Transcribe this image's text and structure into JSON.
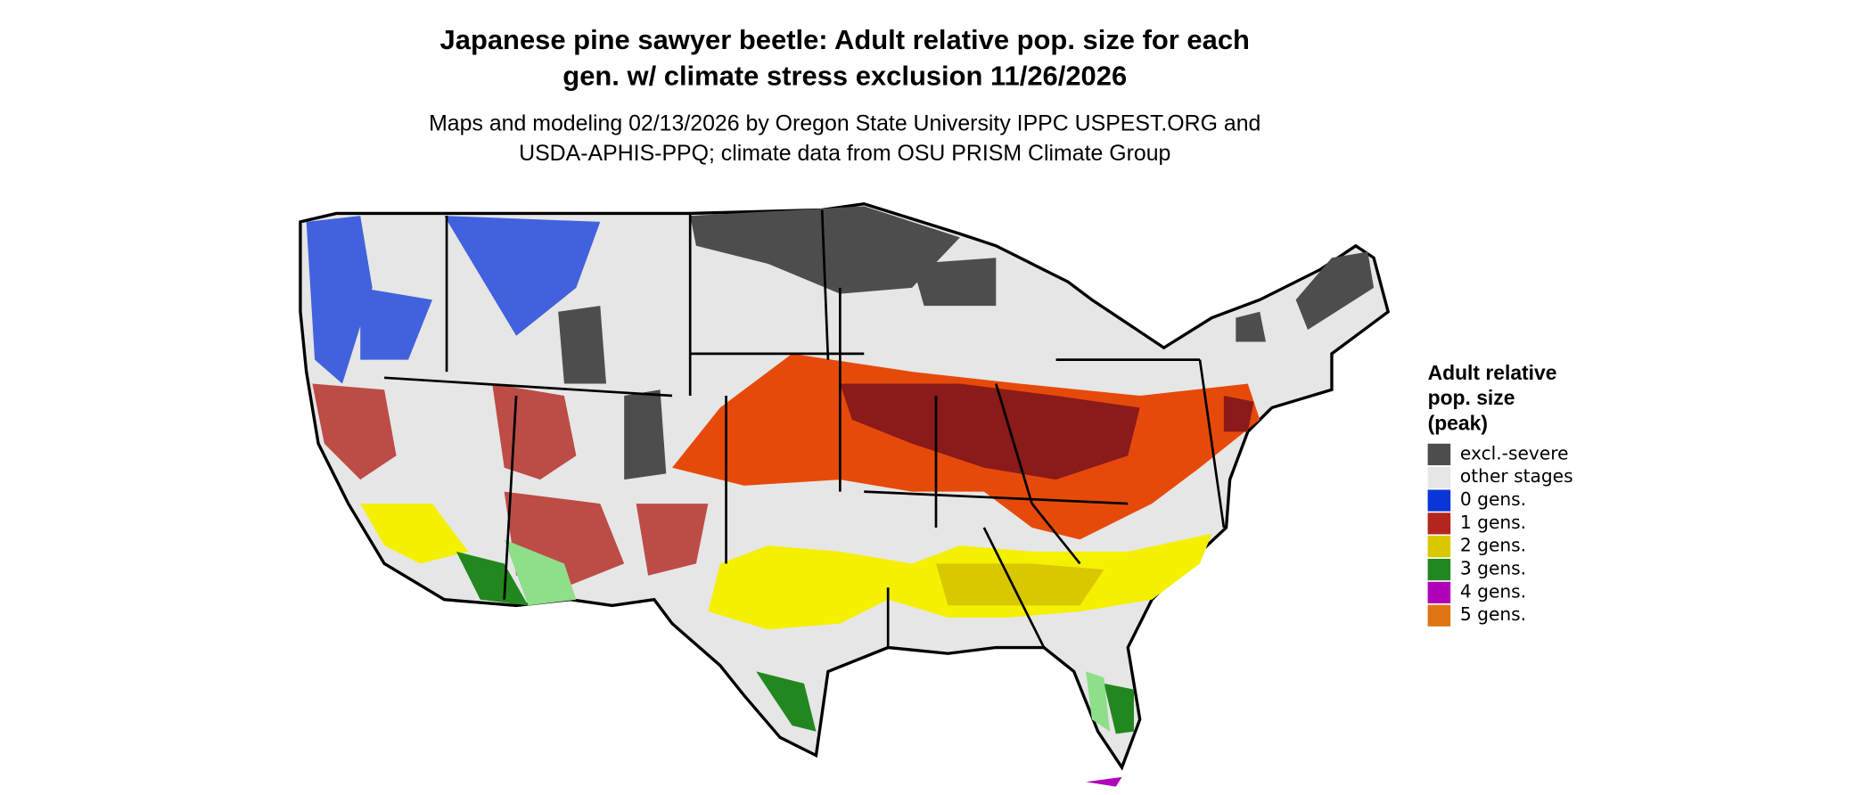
{
  "title": [
    "Japanese pine sawyer beetle: Adult relative pop. size for each",
    "gen. w/ climate stress exclusion 11/26/2026"
  ],
  "subtitle": [
    "Maps and modeling 02/13/2026 by Oregon State University IPPC USPEST.ORG and",
    "USDA-APHIS-PPQ; climate data from OSU PRISM Climate Group"
  ],
  "legend": {
    "title": [
      "Adult relative",
      "pop. size",
      "(peak)"
    ],
    "items": [
      {
        "label": "excl.-severe",
        "color": "#4d4d4d"
      },
      {
        "label": "other stages",
        "color": "#e6e6e6"
      },
      {
        "label": "0 gens.",
        "color": "#0a35d8"
      },
      {
        "label": "1 gens.",
        "color": "#b3261e"
      },
      {
        "label": "2 gens.",
        "color": "#d9c800"
      },
      {
        "label": "3 gens.",
        "color": "#22871f"
      },
      {
        "label": "4 gens.",
        "color": "#b000b8"
      },
      {
        "label": "5 gens.",
        "color": "#e07414"
      }
    ]
  }
}
